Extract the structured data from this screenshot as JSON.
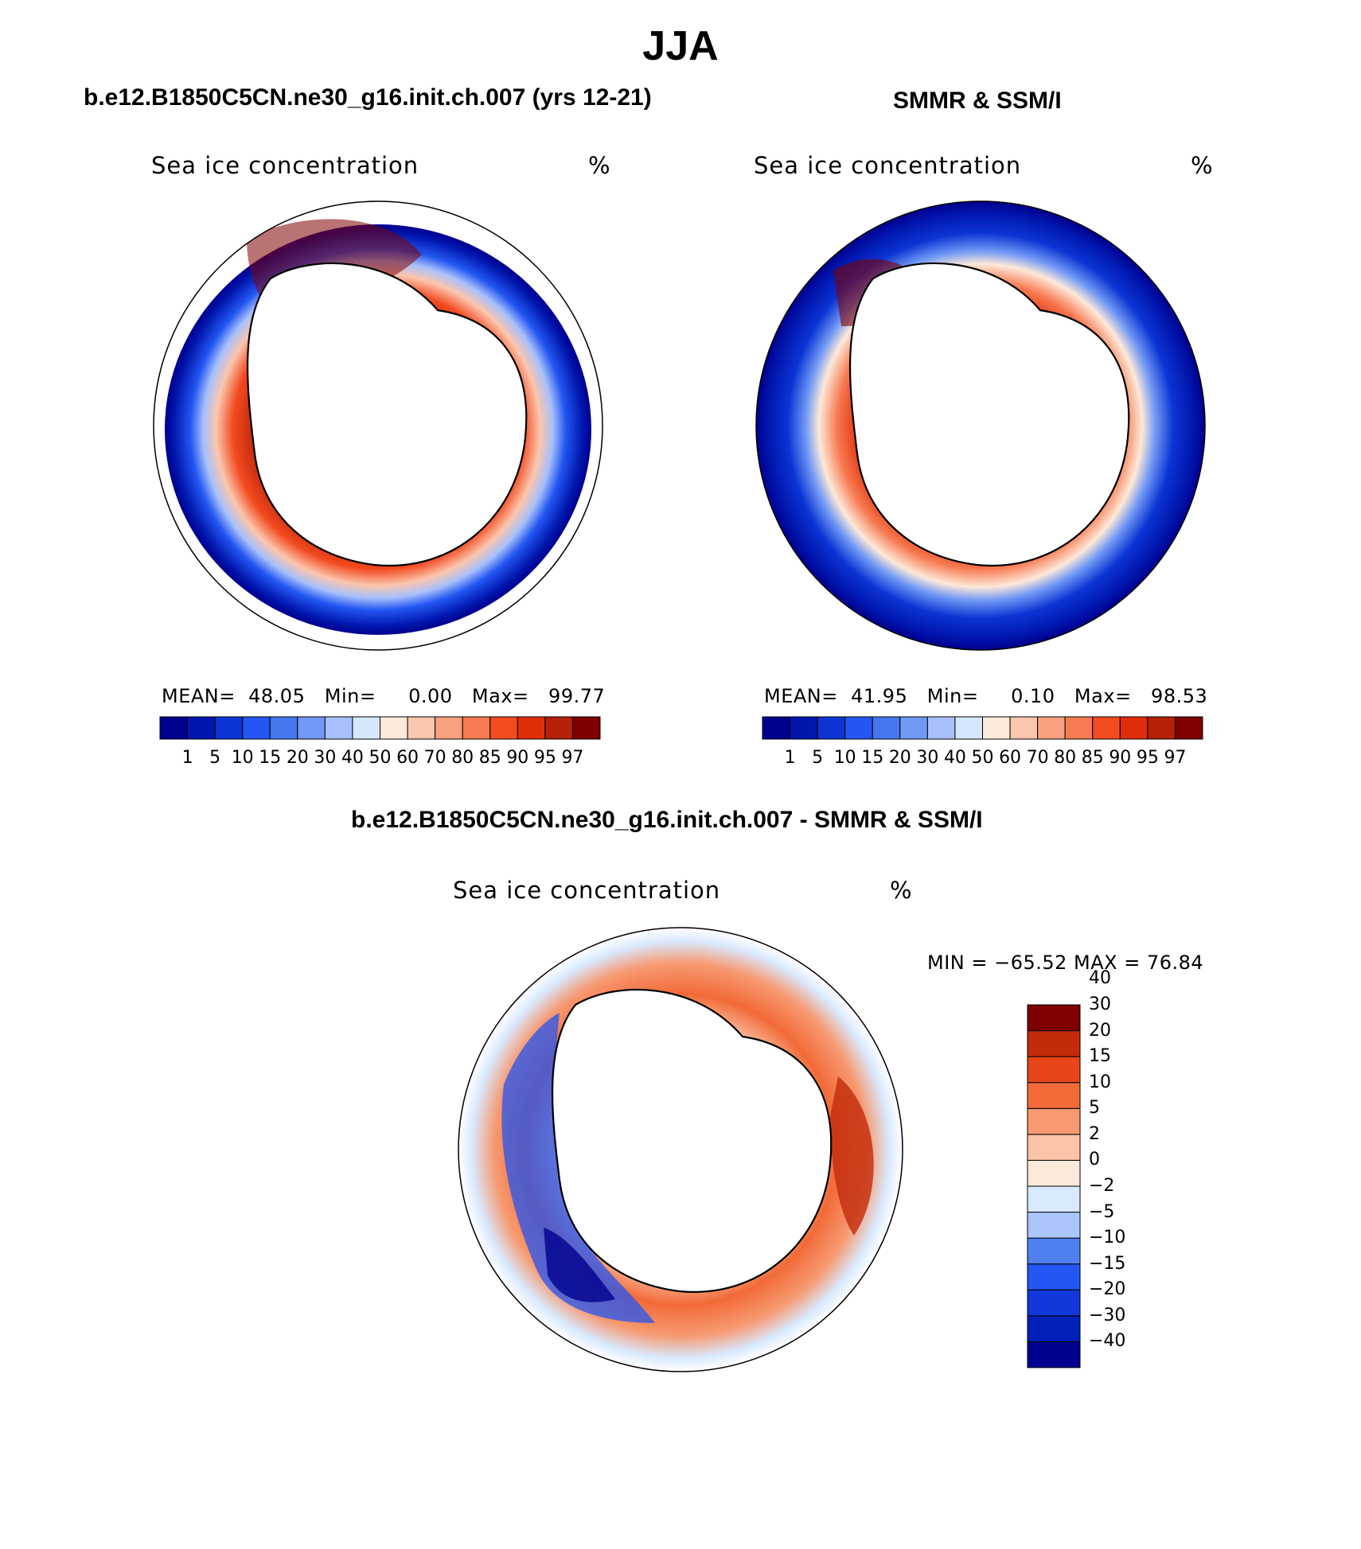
{
  "page": {
    "title": "JJA",
    "case_left": "b.e12.B1850C5CN.ne30_g16.init.ch.007 (yrs 12-21)",
    "case_right": "SMMR & SSM/I",
    "case_diff": "b.e12.B1850C5CN.ne30_g16.init.ch.007 - SMMR & SSM/I"
  },
  "panels": {
    "left": {
      "label": "Sea ice concentration",
      "unit": "%",
      "mean_label": "MEAN=",
      "mean": "48.05",
      "min_label": "Min=",
      "min": "0.00",
      "max_label": "Max=",
      "max": "99.77"
    },
    "right": {
      "label": "Sea ice concentration",
      "unit": "%",
      "mean_label": "MEAN=",
      "mean": "41.95",
      "min_label": "Min=",
      "min": "0.10",
      "max_label": "Max=",
      "max": "98.53"
    },
    "diff": {
      "label": "Sea ice concentration",
      "unit": "%",
      "minmax": "MIN = −65.52 MAX =   76.84"
    }
  },
  "colorbars": {
    "concentration": {
      "colors": [
        "#00008f",
        "#0016ad",
        "#0c34d4",
        "#2356f2",
        "#4577ee",
        "#7098f5",
        "#a7c0fb",
        "#d6e7fd",
        "#fde9d9",
        "#fbc6ae",
        "#f9a07e",
        "#f77b52",
        "#f34a1f",
        "#e02e0a",
        "#b52208",
        "#7f0000"
      ],
      "ticks": [
        "1",
        "5",
        "10",
        "15",
        "20",
        "30",
        "40",
        "50",
        "60",
        "70",
        "80",
        "85",
        "90",
        "95",
        "97"
      ]
    },
    "difference": {
      "colors": [
        "#00008f",
        "#0020b8",
        "#1238db",
        "#2356f2",
        "#4e80f0",
        "#aac6fc",
        "#d9e9fe",
        "#fde9d9",
        "#fbc4a8",
        "#f79a72",
        "#f26a38",
        "#e8461a",
        "#c22a0a",
        "#7f0000"
      ],
      "ticks": [
        "−40",
        "−30",
        "−20",
        "−15",
        "−10",
        "−5",
        "−2",
        "0",
        "2",
        "5",
        "10",
        "15",
        "20",
        "30",
        "40"
      ]
    }
  }
}
